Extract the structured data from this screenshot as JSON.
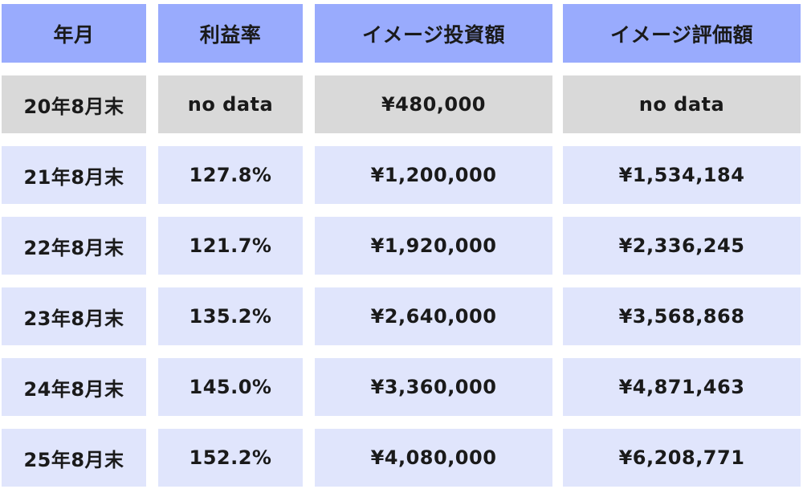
{
  "headers": [
    "年月",
    "利益率",
    "イメージ投資額",
    "イメージ評価額"
  ],
  "rows": [
    {
      "month": "20年8月末",
      "rate": "no data",
      "investment": "¥480,000",
      "valuation": "no data"
    },
    {
      "month": "21年8月末",
      "rate": "127.8%",
      "investment": "¥1,200,000",
      "valuation": "¥1,534,184"
    },
    {
      "month": "22年8月末",
      "rate": "121.7%",
      "investment": "¥1,920,000",
      "valuation": "¥2,336,245"
    },
    {
      "month": "23年8月末",
      "rate": "135.2%",
      "investment": "¥2,640,000",
      "valuation": "¥3,568,868"
    },
    {
      "month": "24年8月末",
      "rate": "145.0%",
      "investment": "¥3,360,000",
      "valuation": "¥4,871,463"
    },
    {
      "month": "25年8月末",
      "rate": "152.2%",
      "investment": "¥4,080,000",
      "valuation": "¥6,208,771"
    }
  ],
  "colors": {
    "header_bg": "#99abfd",
    "first_row_bg": "#d9d9d9",
    "row_bg": "#e0e5fc",
    "text": "#1a1a1a"
  }
}
